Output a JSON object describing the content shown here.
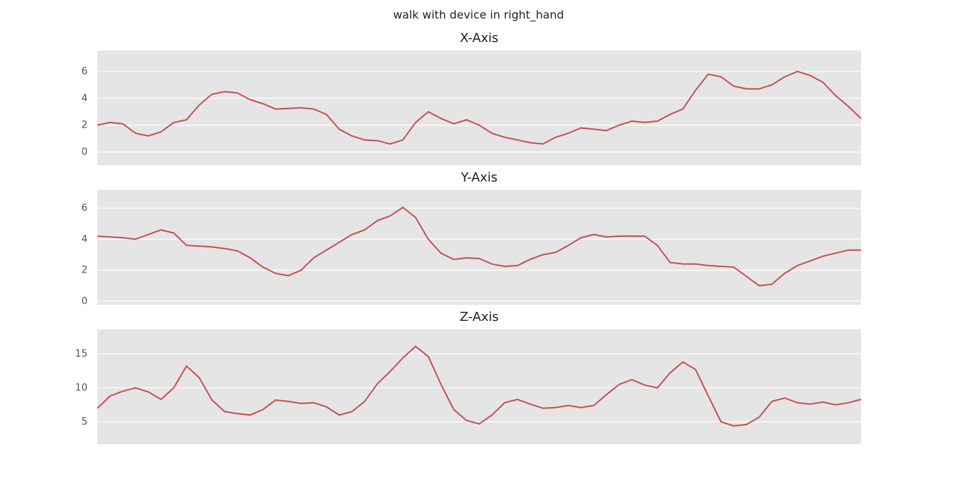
{
  "title": "walk with device in right_hand",
  "chart_data": [
    {
      "type": "line",
      "title": "X-Axis",
      "color": "#c44e52",
      "grid": true,
      "ylim": [
        -0.99,
        7.56
      ],
      "yticks": [
        0,
        2,
        4,
        6
      ],
      "values": [
        2.0,
        2.2,
        2.1,
        1.4,
        1.2,
        1.5,
        2.2,
        2.4,
        3.5,
        4.3,
        4.5,
        4.4,
        3.9,
        3.6,
        3.2,
        3.25,
        3.3,
        3.2,
        2.8,
        1.7,
        1.2,
        0.9,
        0.85,
        0.6,
        0.9,
        2.2,
        3.0,
        2.5,
        2.1,
        2.4,
        2.0,
        1.4,
        1.1,
        0.9,
        0.7,
        0.6,
        1.1,
        1.4,
        1.8,
        1.7,
        1.6,
        2.0,
        2.3,
        2.2,
        2.3,
        2.8,
        3.2,
        4.6,
        5.8,
        5.6,
        4.9,
        4.7,
        4.7,
        5.0,
        5.6,
        6.0,
        5.7,
        5.2,
        4.2,
        3.4,
        2.5
      ]
    },
    {
      "type": "line",
      "title": "Y-Axis",
      "color": "#c44e52",
      "grid": true,
      "ylim": [
        -0.23,
        7.18
      ],
      "yticks": [
        0,
        2,
        4,
        6
      ],
      "values": [
        4.2,
        4.15,
        4.1,
        4.0,
        4.3,
        4.6,
        4.4,
        3.6,
        3.55,
        3.5,
        3.4,
        3.25,
        2.8,
        2.2,
        1.8,
        1.65,
        2.0,
        2.8,
        3.3,
        3.8,
        4.3,
        4.6,
        5.2,
        5.5,
        6.05,
        5.4,
        4.0,
        3.1,
        2.7,
        2.8,
        2.75,
        2.4,
        2.25,
        2.3,
        2.7,
        3.0,
        3.15,
        3.6,
        4.1,
        4.3,
        4.15,
        4.2,
        4.2,
        4.2,
        3.6,
        2.5,
        2.4,
        2.4,
        2.3,
        2.25,
        2.2,
        1.6,
        1.0,
        1.1,
        1.8,
        2.3,
        2.6,
        2.9,
        3.1,
        3.3,
        3.3
      ]
    },
    {
      "type": "line",
      "title": "Z-Axis",
      "color": "#c44e52",
      "grid": true,
      "ylim": [
        1.7,
        18.6
      ],
      "yticks": [
        5,
        10,
        15
      ],
      "values": [
        7.0,
        8.8,
        9.5,
        10.0,
        9.4,
        8.3,
        10.0,
        13.2,
        11.5,
        8.2,
        6.5,
        6.2,
        6.0,
        6.8,
        8.2,
        8.0,
        7.7,
        7.8,
        7.2,
        6.0,
        6.5,
        8.0,
        10.6,
        12.4,
        14.4,
        16.1,
        14.6,
        10.5,
        6.8,
        5.2,
        4.7,
        6.0,
        7.8,
        8.3,
        7.6,
        7.0,
        7.1,
        7.4,
        7.1,
        7.4,
        9.0,
        10.5,
        11.2,
        10.4,
        10.0,
        12.2,
        13.8,
        12.7,
        8.8,
        5.0,
        4.4,
        4.6,
        5.7,
        8.0,
        8.5,
        7.8,
        7.6,
        7.9,
        7.5,
        7.8,
        8.3
      ]
    }
  ]
}
